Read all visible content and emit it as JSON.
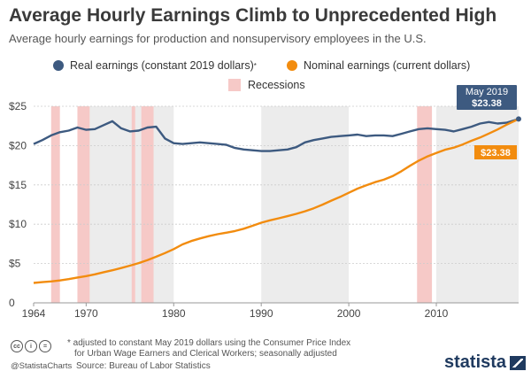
{
  "header": {
    "title": "Average Hourly Earnings Climb to Unprecedented High",
    "subtitle": "Average hourly earnings for production and nonsupervisory employees in the U.S."
  },
  "legend": {
    "real_label": "Real earnings (constant 2019 dollars)",
    "real_mark": "*",
    "nominal_label": "Nominal earnings (current dollars)",
    "recessions_label": "Recessions"
  },
  "colors": {
    "real": "#3d5a80",
    "nominal": "#f28c0f",
    "recession": "#f6c9c7",
    "decade_shade": "#ececec",
    "grid": "#cccccc"
  },
  "callouts": {
    "real_date": "May 2019",
    "real_value": "$23.38",
    "nominal_value": "$23.38"
  },
  "footer": {
    "note_line1": "* adjusted to constant May 2019 dollars using the Consumer Price Index",
    "note_line2": "for Urban Wage Earners and Clerical Workers; seasonally adjusted",
    "source": "Source: Bureau of Labor Statistics",
    "handle": "@StatistaCharts",
    "brand": "statista"
  },
  "chart_data": {
    "type": "line",
    "title": "Average Hourly Earnings Climb to Unprecedented High",
    "xlabel": "",
    "ylabel": "",
    "xlim": [
      1964,
      2019.4
    ],
    "ylim": [
      0,
      25
    ],
    "y_ticks": [
      "0",
      "$5",
      "$10",
      "$15",
      "$20",
      "$25"
    ],
    "y_tick_values": [
      0,
      5,
      10,
      15,
      20,
      25
    ],
    "x_ticks": [
      "1964",
      "1970",
      "1980",
      "1990",
      "2000",
      "2010"
    ],
    "x_tick_values": [
      1964,
      1970,
      1980,
      1990,
      2000,
      2010
    ],
    "grid": true,
    "recessions": [
      [
        1966,
        1967
      ],
      [
        1969,
        1970.4
      ],
      [
        1975.2,
        1975.6
      ],
      [
        1976.3,
        1977.7
      ],
      [
        2007.8,
        2009.5
      ]
    ],
    "shaded_decades": [
      [
        1970,
        1980
      ],
      [
        1990,
        2000
      ],
      [
        2010,
        2019.4
      ]
    ],
    "series": [
      {
        "name": "Real earnings (constant 2019 dollars)",
        "x": [
          1964,
          1965,
          1966,
          1967,
          1968,
          1969,
          1970,
          1971,
          1972,
          1973,
          1974,
          1975,
          1976,
          1977,
          1978,
          1979,
          1980,
          1981,
          1982,
          1983,
          1984,
          1985,
          1986,
          1987,
          1988,
          1989,
          1990,
          1991,
          1992,
          1993,
          1994,
          1995,
          1996,
          1997,
          1998,
          1999,
          2000,
          2001,
          2002,
          2003,
          2004,
          2005,
          2006,
          2007,
          2008,
          2009,
          2010,
          2011,
          2012,
          2013,
          2014,
          2015,
          2016,
          2017,
          2018,
          2019.4
        ],
        "y": [
          20.2,
          20.7,
          21.3,
          21.7,
          21.9,
          22.3,
          22.0,
          22.1,
          22.6,
          23.1,
          22.2,
          21.8,
          21.9,
          22.3,
          22.4,
          20.9,
          20.3,
          20.2,
          20.3,
          20.4,
          20.3,
          20.2,
          20.1,
          19.7,
          19.5,
          19.4,
          19.3,
          19.3,
          19.4,
          19.5,
          19.8,
          20.4,
          20.7,
          20.9,
          21.1,
          21.2,
          21.3,
          21.4,
          21.2,
          21.3,
          21.3,
          21.2,
          21.5,
          21.8,
          22.1,
          22.2,
          22.1,
          22.0,
          21.8,
          22.1,
          22.4,
          22.8,
          23.0,
          22.8,
          22.9,
          23.38
        ]
      },
      {
        "name": "Nominal earnings (current dollars)",
        "x": [
          1964,
          1965,
          1966,
          1967,
          1968,
          1969,
          1970,
          1971,
          1972,
          1973,
          1974,
          1975,
          1976,
          1977,
          1978,
          1979,
          1980,
          1981,
          1982,
          1983,
          1984,
          1985,
          1986,
          1987,
          1988,
          1989,
          1990,
          1991,
          1992,
          1993,
          1994,
          1995,
          1996,
          1997,
          1998,
          1999,
          2000,
          2001,
          2002,
          2003,
          2004,
          2005,
          2006,
          2007,
          2008,
          2009,
          2010,
          2011,
          2012,
          2013,
          2014,
          2015,
          2016,
          2017,
          2018,
          2019.4
        ],
        "y": [
          2.53,
          2.63,
          2.73,
          2.85,
          3.02,
          3.22,
          3.4,
          3.63,
          3.9,
          4.14,
          4.43,
          4.73,
          5.06,
          5.44,
          5.87,
          6.33,
          6.84,
          7.43,
          7.86,
          8.19,
          8.48,
          8.73,
          8.92,
          9.13,
          9.43,
          9.8,
          10.19,
          10.5,
          10.76,
          11.03,
          11.32,
          11.64,
          12.03,
          12.49,
          13.0,
          13.47,
          14.0,
          14.53,
          14.95,
          15.35,
          15.67,
          16.11,
          16.73,
          17.43,
          18.08,
          18.63,
          19.07,
          19.47,
          19.74,
          20.13,
          20.61,
          21.03,
          21.53,
          22.05,
          22.65,
          23.38
        ]
      }
    ]
  }
}
